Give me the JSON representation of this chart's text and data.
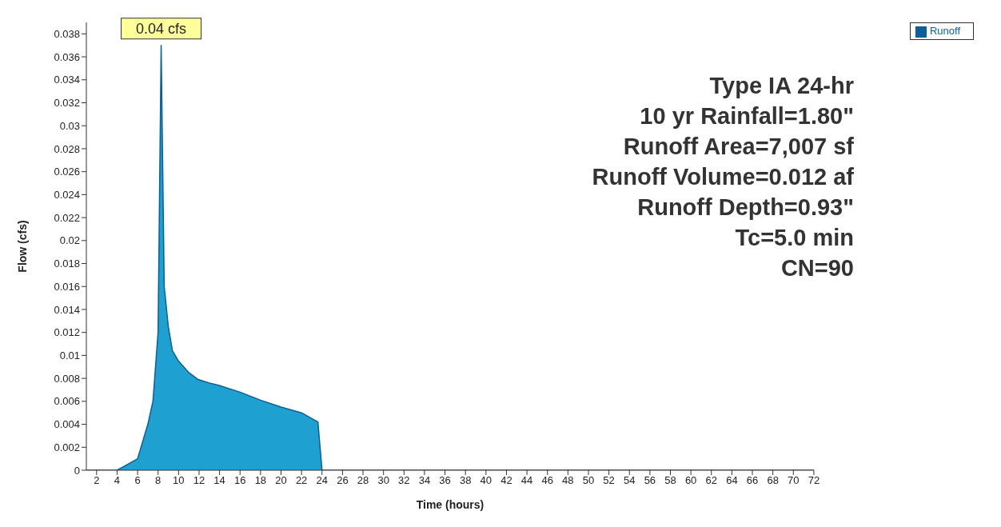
{
  "chart_data": {
    "type": "area",
    "xlabel": "Time  (hours)",
    "ylabel": "Flow  (cfs)",
    "x": [
      1,
      4,
      5,
      6,
      7,
      7.5,
      8,
      8.3,
      8.6,
      9,
      9.4,
      10,
      11,
      11.9,
      13,
      13.9,
      16,
      18,
      20,
      22,
      23,
      23.6,
      24,
      26,
      30,
      40,
      50,
      60,
      72
    ],
    "series": [
      {
        "name": "Runoff",
        "color": "#1ea0d0",
        "values": [
          0,
          0,
          0.0005,
          0.001,
          0.004,
          0.006,
          0.012,
          0.037,
          0.016,
          0.0125,
          0.0104,
          0.0095,
          0.0085,
          0.0079,
          0.0076,
          0.0074,
          0.0068,
          0.0061,
          0.0055,
          0.005,
          0.0045,
          0.0042,
          0,
          0,
          0,
          0,
          0,
          0,
          0
        ]
      }
    ],
    "xlim": [
      1,
      72
    ],
    "ylim": [
      0,
      0.039
    ],
    "xticks": [
      2,
      4,
      6,
      8,
      10,
      12,
      14,
      16,
      18,
      20,
      22,
      24,
      26,
      28,
      30,
      32,
      34,
      36,
      38,
      40,
      42,
      44,
      46,
      48,
      50,
      52,
      54,
      56,
      58,
      60,
      62,
      64,
      66,
      68,
      70,
      72
    ],
    "yticks": [
      0,
      0.002,
      0.004,
      0.006,
      0.008,
      0.01,
      0.012,
      0.014,
      0.016,
      0.018,
      0.02,
      0.022,
      0.024,
      0.026,
      0.028,
      0.03,
      0.032,
      0.034,
      0.036,
      0.038
    ],
    "grid": false,
    "legend": "top right",
    "marker": "none",
    "annotations": [
      {
        "text": "0.04 cfs",
        "x": 8.3,
        "y": 0.037
      },
      "Type IA 24-hr",
      "10 yr Rainfall=1.80\"",
      "Runoff Area=7,007 sf",
      "Runoff Volume=0.012 af",
      "Runoff Depth=0.93\"",
      "Tc=5.0 min",
      "CN=90"
    ]
  }
}
